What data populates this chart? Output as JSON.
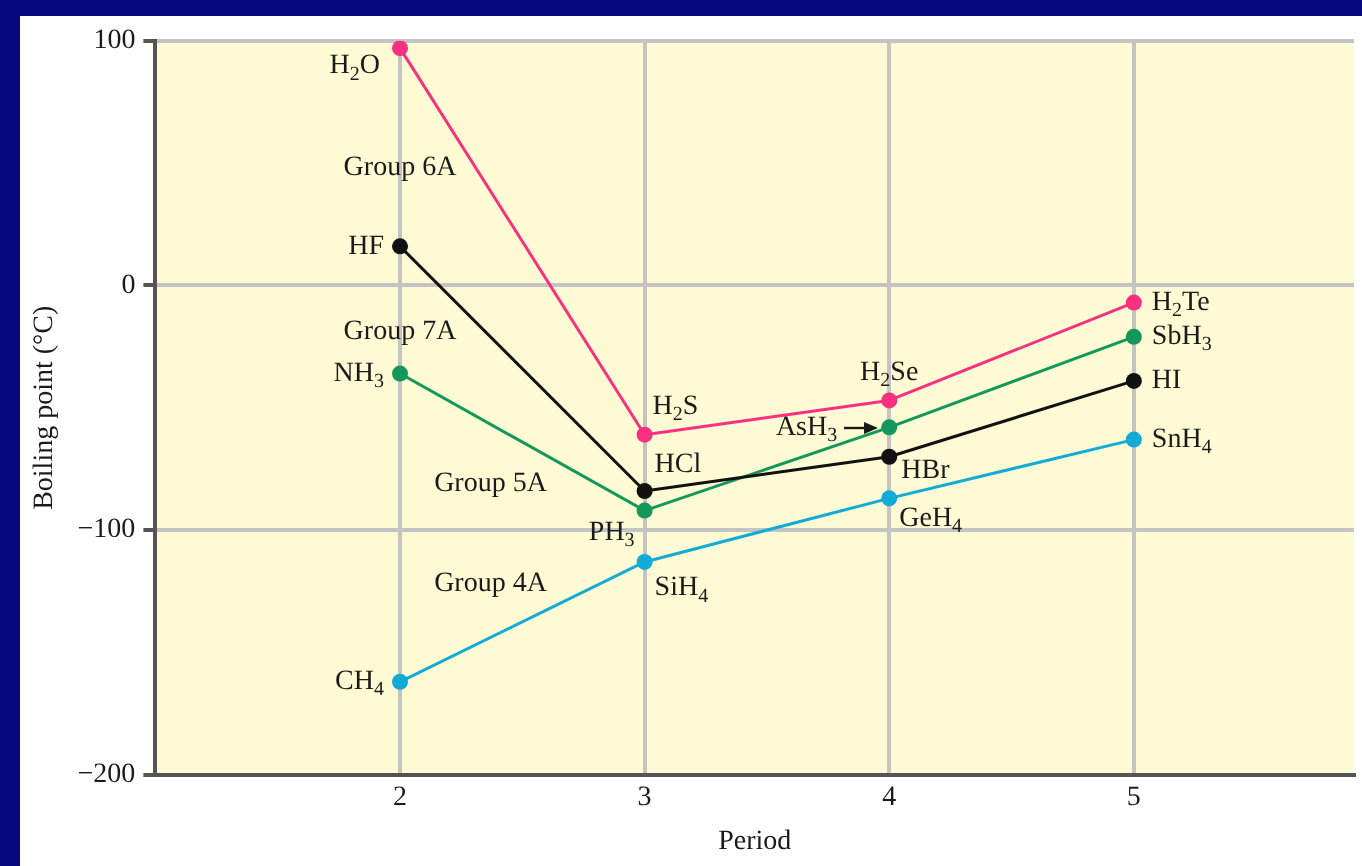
{
  "chart_data": {
    "type": "line",
    "xlabel": "Period",
    "ylabel": "Boiling point (°C)",
    "x": [
      2,
      3,
      4,
      5
    ],
    "series": [
      {
        "name": "Group 6A",
        "color": "#f7317f",
        "values": [
          97,
          -61,
          -47,
          -7
        ]
      },
      {
        "name": "Group 7A",
        "color": "#111111",
        "values": [
          16,
          -84,
          -70,
          -39
        ]
      },
      {
        "name": "Group 5A",
        "color": "#13975a",
        "values": [
          -36,
          -92,
          -58,
          -21
        ]
      },
      {
        "name": "Group 4A",
        "color": "#12aad6",
        "values": [
          -162,
          -113,
          -87,
          -63
        ]
      }
    ],
    "xlim": [
      1,
      5.9
    ],
    "xticks": [
      2,
      3,
      4,
      5
    ],
    "ylim": [
      -200,
      100
    ],
    "yticks": [
      100,
      0,
      {
        "value": -100,
        "label": "−100"
      },
      {
        "value": -200,
        "label": "−200"
      }
    ],
    "grid": true,
    "legend": false,
    "marker": "circle",
    "line_style": "solid",
    "annotations": [
      {
        "text": "H$_{2}$O",
        "x": 2,
        "y": 97
      },
      {
        "text": "H$_{2}$S",
        "x": 3,
        "y": -61
      },
      {
        "text": "H$_{2}$Se",
        "x": 4,
        "y": -47
      },
      {
        "text": "H$_{2}$Te",
        "x": 5,
        "y": -7
      },
      {
        "text": "HF",
        "x": 2,
        "y": 16
      },
      {
        "text": "HCl",
        "x": 3,
        "y": -84
      },
      {
        "text": "HBr",
        "x": 4,
        "y": -70
      },
      {
        "text": "HI",
        "x": 5,
        "y": -39
      },
      {
        "text": "NH$_{3}$",
        "x": 2,
        "y": -36
      },
      {
        "text": "PH$_{3}$",
        "x": 3,
        "y": -92
      },
      {
        "text": "AsH$_{3}$",
        "x": 4,
        "y": -58
      },
      {
        "text": "SbH$_{3}$",
        "x": 5,
        "y": -21
      },
      {
        "text": "CH$_{4}$",
        "x": 2,
        "y": -162
      },
      {
        "text": "SiH$_{4}$",
        "x": 3,
        "y": -113
      },
      {
        "text": "GeH$_{4}$",
        "x": 4,
        "y": -87
      },
      {
        "text": "SnH$_{4}$",
        "x": 5,
        "y": -63
      }
    ]
  }
}
